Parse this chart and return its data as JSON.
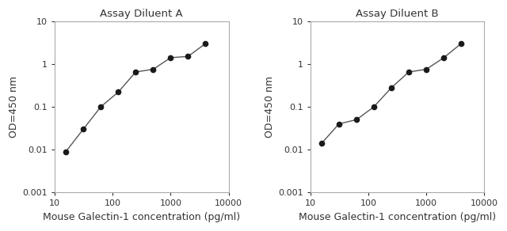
{
  "panel_A": {
    "title": "Assay Diluent A",
    "x": [
      15.625,
      31.25,
      62.5,
      125,
      250,
      500,
      1000,
      2000,
      4000
    ],
    "y": [
      0.009,
      0.03,
      0.1,
      0.22,
      0.65,
      0.75,
      1.4,
      1.5,
      3.0
    ],
    "xlabel": "Mouse Galectin-1 concentration (pg/ml)",
    "ylabel": "OD=450 nm",
    "xlim": [
      10,
      10000
    ],
    "ylim": [
      0.001,
      10
    ],
    "line_color": "#555555",
    "marker_color": "#1a1a1a"
  },
  "panel_B": {
    "title": "Assay Diluent B",
    "x": [
      15.625,
      31.25,
      62.5,
      125,
      250,
      500,
      1000,
      2000,
      4000
    ],
    "y": [
      0.014,
      0.04,
      0.05,
      0.1,
      0.28,
      0.65,
      0.75,
      1.4,
      3.0
    ],
    "xlabel": "Mouse Galectin-1 concentration (pg/ml)",
    "ylabel": "OD=450 nm",
    "xlim": [
      10,
      10000
    ],
    "ylim": [
      0.001,
      10
    ],
    "line_color": "#555555",
    "marker_color": "#1a1a1a"
  },
  "background_color": "#ffffff",
  "title_fontsize": 9.5,
  "label_fontsize": 9,
  "tick_fontsize": 8,
  "spine_color": "#aaaaaa",
  "text_color": "#333333"
}
